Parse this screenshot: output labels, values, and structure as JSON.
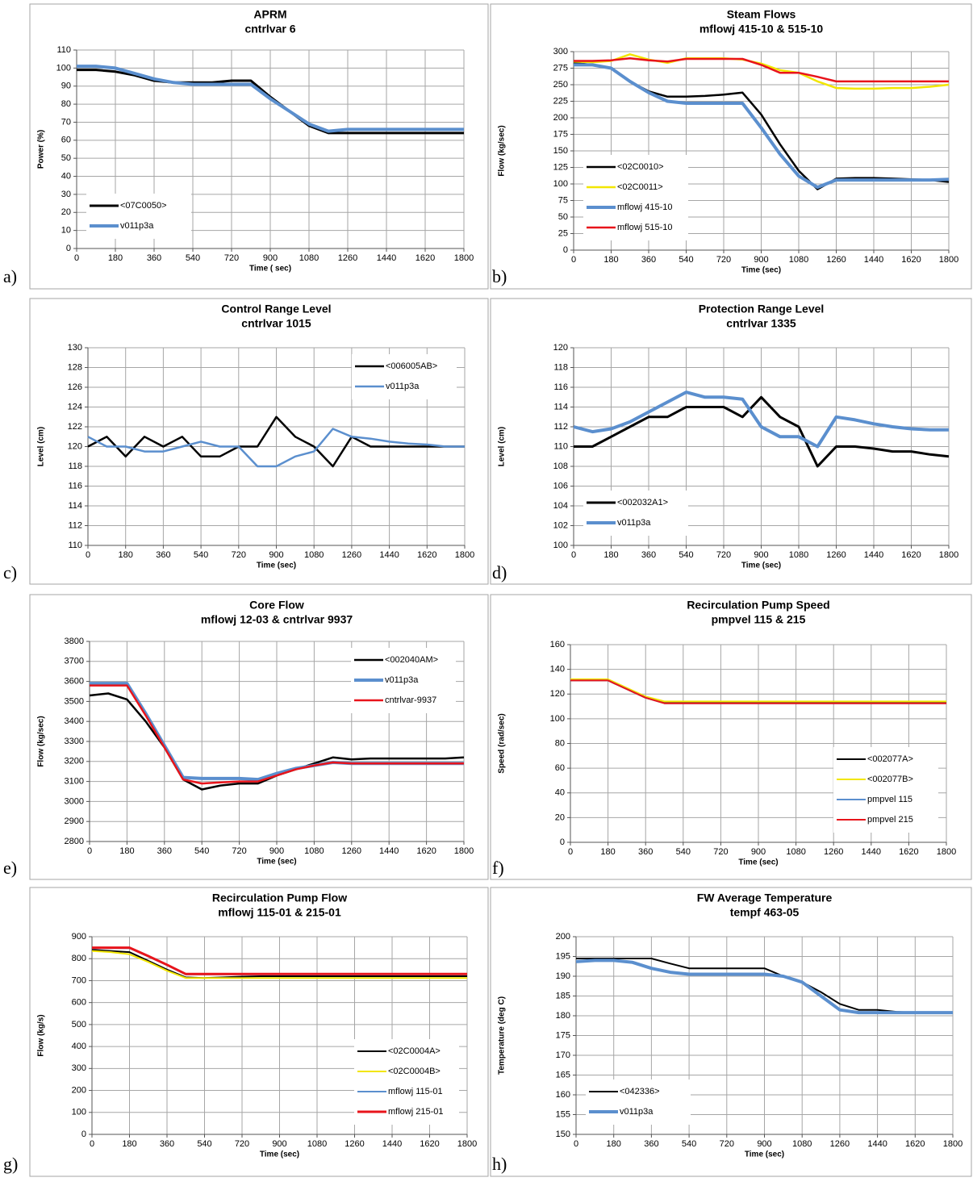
{
  "chart_data": [
    {
      "type": "line",
      "panel": "a)",
      "title": "APRM",
      "subtitle": "cntrlvar 6",
      "xlabel": "Time ( sec)",
      "ylabel": "Power (%)",
      "x": [
        0,
        90,
        180,
        270,
        360,
        450,
        540,
        630,
        720,
        810,
        900,
        990,
        1080,
        1170,
        1260,
        1350,
        1440,
        1530,
        1620,
        1710,
        1800
      ],
      "xlim": [
        0,
        1800
      ],
      "xticks": [
        0,
        180,
        360,
        540,
        720,
        900,
        1080,
        1260,
        1440,
        1620,
        1800
      ],
      "ylim": [
        0,
        110
      ],
      "yticks": [
        0,
        10,
        20,
        30,
        40,
        50,
        60,
        70,
        80,
        90,
        100,
        110
      ],
      "grid": true,
      "legend": "lower left",
      "series": [
        {
          "name": "<07C0050>",
          "color": "#000000",
          "width": 3,
          "values": [
            99,
            99,
            98,
            96,
            93,
            92,
            92,
            92,
            93,
            93,
            84,
            76,
            68,
            64,
            64,
            64,
            64,
            64,
            64,
            64,
            64
          ]
        },
        {
          "name": "v011p3a",
          "color": "#5b8fce",
          "width": 4,
          "values": [
            101,
            101,
            100,
            97,
            94,
            92,
            91,
            91,
            91,
            91,
            83,
            76,
            69,
            65,
            66,
            66,
            66,
            66,
            66,
            66,
            66
          ]
        }
      ]
    },
    {
      "type": "line",
      "panel": "b)",
      "title": "Steam Flows",
      "subtitle": "mflowj 415-10 & 515-10",
      "xlabel": "Time (sec)",
      "ylabel": "Flow (kg/sec)",
      "x": [
        0,
        90,
        180,
        270,
        360,
        450,
        540,
        630,
        720,
        810,
        900,
        990,
        1080,
        1170,
        1260,
        1350,
        1440,
        1530,
        1620,
        1710,
        1800
      ],
      "xlim": [
        0,
        1800
      ],
      "xticks": [
        0,
        180,
        360,
        540,
        720,
        900,
        1080,
        1260,
        1440,
        1620,
        1800
      ],
      "ylim": [
        0,
        300
      ],
      "yticks": [
        0,
        25,
        50,
        75,
        100,
        125,
        150,
        175,
        200,
        225,
        250,
        275,
        300
      ],
      "grid": true,
      "legend": "lower left",
      "series": [
        {
          "name": "<02C0010>",
          "color": "#000000",
          "width": 2.5,
          "values": [
            283,
            280,
            275,
            255,
            240,
            232,
            232,
            233,
            235,
            238,
            205,
            160,
            120,
            92,
            108,
            109,
            109,
            108,
            107,
            106,
            103
          ]
        },
        {
          "name": "<02C0011>",
          "color": "#f2e600",
          "width": 2.5,
          "values": [
            285,
            284,
            286,
            296,
            288,
            283,
            290,
            290,
            290,
            288,
            282,
            272,
            268,
            255,
            245,
            244,
            244,
            245,
            245,
            247,
            250
          ]
        },
        {
          "name": "mflowj 415-10",
          "color": "#5b8fce",
          "width": 4,
          "values": [
            280,
            280,
            275,
            255,
            238,
            225,
            222,
            222,
            222,
            222,
            185,
            145,
            112,
            95,
            106,
            106,
            106,
            106,
            106,
            106,
            107
          ]
        },
        {
          "name": "mflowj 515-10",
          "color": "#e8141b",
          "width": 2.5,
          "values": [
            286,
            286,
            287,
            290,
            287,
            285,
            289,
            289,
            289,
            289,
            280,
            268,
            268,
            262,
            255,
            255,
            255,
            255,
            255,
            255,
            255
          ]
        }
      ]
    },
    {
      "type": "line",
      "panel": "c)",
      "title": "Control Range Level",
      "subtitle": "cntrlvar 1015",
      "xlabel": "Time (sec)",
      "ylabel": "Level (cm)",
      "x": [
        0,
        90,
        180,
        270,
        360,
        450,
        540,
        630,
        720,
        810,
        900,
        990,
        1080,
        1170,
        1260,
        1350,
        1440,
        1530,
        1620,
        1710,
        1800
      ],
      "xlim": [
        0,
        1800
      ],
      "xticks": [
        0,
        180,
        360,
        540,
        720,
        900,
        1080,
        1260,
        1440,
        1620,
        1800
      ],
      "ylim": [
        110,
        130
      ],
      "yticks": [
        110,
        112,
        114,
        116,
        118,
        120,
        122,
        124,
        126,
        128,
        130
      ],
      "grid": true,
      "legend": "upper right",
      "series": [
        {
          "name": "<006005AB>",
          "color": "#000000",
          "width": 2.5,
          "values": [
            120,
            121,
            119,
            121,
            120,
            121,
            119,
            119,
            120,
            120,
            123,
            121,
            120,
            118,
            121,
            120,
            120,
            120,
            120,
            120,
            120
          ]
        },
        {
          "name": "v011p3a",
          "color": "#5b8fce",
          "width": 2.5,
          "values": [
            121,
            120,
            120,
            119.5,
            119.5,
            120,
            120.5,
            120,
            120,
            118,
            118,
            119,
            119.5,
            121.8,
            121,
            120.8,
            120.5,
            120.3,
            120.2,
            120,
            120
          ]
        }
      ]
    },
    {
      "type": "line",
      "panel": "d)",
      "title": "Protection Range Level",
      "subtitle": "cntrlvar  1335",
      "xlabel": "Time (sec)",
      "ylabel": "Level (cm)",
      "x": [
        0,
        90,
        180,
        270,
        360,
        450,
        540,
        630,
        720,
        810,
        900,
        990,
        1080,
        1170,
        1260,
        1350,
        1440,
        1530,
        1620,
        1710,
        1800
      ],
      "xlim": [
        0,
        1800
      ],
      "xticks": [
        0,
        180,
        360,
        540,
        720,
        900,
        1080,
        1260,
        1440,
        1620,
        1800
      ],
      "ylim": [
        100,
        120
      ],
      "yticks": [
        100,
        102,
        104,
        106,
        108,
        110,
        112,
        114,
        116,
        118,
        120
      ],
      "grid": true,
      "legend": "lower left",
      "series": [
        {
          "name": "<002032A1>",
          "color": "#000000",
          "width": 3,
          "values": [
            110,
            110,
            111,
            112,
            113,
            113,
            114,
            114,
            114,
            113,
            115,
            113,
            112,
            108,
            110,
            110,
            109.8,
            109.5,
            109.5,
            109.2,
            109
          ]
        },
        {
          "name": "v011p3a",
          "color": "#5b8fce",
          "width": 4,
          "values": [
            112,
            111.5,
            111.8,
            112.5,
            113.5,
            114.5,
            115.5,
            115,
            115,
            114.8,
            112,
            111,
            111,
            110,
            113,
            112.7,
            112.3,
            112,
            111.8,
            111.7,
            111.7
          ]
        }
      ]
    },
    {
      "type": "line",
      "panel": "e)",
      "title": "Core Flow",
      "subtitle": "mflowj 12-03 & cntrlvar 9937",
      "xlabel": "Time (sec)",
      "ylabel": "Flow (kg/sec)",
      "x": [
        0,
        90,
        180,
        270,
        360,
        450,
        540,
        630,
        720,
        810,
        900,
        990,
        1080,
        1170,
        1260,
        1350,
        1440,
        1530,
        1620,
        1710,
        1800
      ],
      "xlim": [
        0,
        1800
      ],
      "xticks": [
        0,
        180,
        360,
        540,
        720,
        900,
        1080,
        1260,
        1440,
        1620,
        1800
      ],
      "ylim": [
        2800,
        3800
      ],
      "yticks": [
        2800,
        2900,
        3000,
        3100,
        3200,
        3300,
        3400,
        3500,
        3600,
        3700,
        3800
      ],
      "grid": true,
      "legend": "upper right",
      "series": [
        {
          "name": "<002040AM>",
          "color": "#000000",
          "width": 2.5,
          "values": [
            3530,
            3540,
            3510,
            3400,
            3270,
            3110,
            3060,
            3080,
            3090,
            3090,
            3130,
            3160,
            3190,
            3220,
            3210,
            3215,
            3215,
            3215,
            3215,
            3215,
            3220
          ]
        },
        {
          "name": "v011p3a",
          "color": "#5b8fce",
          "width": 4,
          "values": [
            3590,
            3590,
            3590,
            3440,
            3280,
            3120,
            3115,
            3115,
            3115,
            3110,
            3140,
            3165,
            3180,
            3195,
            3190,
            3190,
            3190,
            3190,
            3190,
            3190,
            3190
          ]
        },
        {
          "name": "cntrlvar-9937",
          "color": "#e8141b",
          "width": 2.5,
          "values": [
            3580,
            3580,
            3580,
            3430,
            3270,
            3110,
            3090,
            3095,
            3100,
            3100,
            3130,
            3160,
            3180,
            3195,
            3190,
            3190,
            3190,
            3190,
            3190,
            3190,
            3190
          ]
        }
      ]
    },
    {
      "type": "line",
      "panel": "f)",
      "title": "Recirculation Pump Speed",
      "subtitle": "pmpvel 115 & 215",
      "xlabel": "Time (sec)",
      "ylabel": "Speed (rad/sec)",
      "x": [
        0,
        90,
        180,
        270,
        360,
        450,
        540,
        630,
        720,
        810,
        900,
        990,
        1080,
        1170,
        1260,
        1350,
        1440,
        1530,
        1620,
        1710,
        1800
      ],
      "xlim": [
        0,
        1800
      ],
      "xticks": [
        0,
        180,
        360,
        540,
        720,
        900,
        1080,
        1260,
        1440,
        1620,
        1800
      ],
      "ylim": [
        0,
        160
      ],
      "yticks": [
        0,
        20,
        40,
        60,
        80,
        100,
        120,
        140,
        160
      ],
      "grid": true,
      "legend": "lower right",
      "series": [
        {
          "name": "<002077A>",
          "color": "#000000",
          "width": 2,
          "values": [
            131,
            131,
            131,
            124,
            117,
            113,
            113,
            113,
            113,
            113,
            113,
            113,
            113,
            113,
            113,
            113,
            113,
            113,
            113,
            113,
            113
          ]
        },
        {
          "name": "<002077B>",
          "color": "#f2e600",
          "width": 2,
          "values": [
            132,
            132,
            132,
            125,
            118,
            114,
            114,
            114,
            114,
            114,
            114,
            114,
            114,
            114,
            114,
            114,
            114,
            114,
            114,
            114,
            114
          ]
        },
        {
          "name": "pmpvel 115",
          "color": "#5b8fce",
          "width": 2,
          "values": [
            131,
            131,
            131,
            124,
            117,
            112.5,
            112.5,
            112.5,
            112.5,
            112.5,
            112.5,
            112.5,
            112.5,
            112.5,
            112.5,
            112.5,
            112.5,
            112.5,
            112.5,
            112.5,
            112.5
          ]
        },
        {
          "name": "pmpvel 215",
          "color": "#e8141b",
          "width": 2,
          "values": [
            131,
            131,
            131,
            124,
            117,
            112.5,
            112.5,
            112.5,
            112.5,
            112.5,
            112.5,
            112.5,
            112.5,
            112.5,
            112.5,
            112.5,
            112.5,
            112.5,
            112.5,
            112.5,
            112.5
          ]
        }
      ]
    },
    {
      "type": "line",
      "panel": "g)",
      "title": "Recirculation Pump Flow",
      "subtitle": "mflowj 115-01 & 215-01",
      "xlabel": "Time (sec)",
      "ylabel": "Flow (kg/s)",
      "x": [
        0,
        90,
        180,
        270,
        360,
        450,
        540,
        630,
        720,
        810,
        900,
        990,
        1080,
        1170,
        1260,
        1350,
        1440,
        1530,
        1620,
        1710,
        1800
      ],
      "xlim": [
        0,
        1800
      ],
      "xticks": [
        0,
        180,
        360,
        540,
        720,
        900,
        1080,
        1260,
        1440,
        1620,
        1800
      ],
      "ylim": [
        0,
        900
      ],
      "yticks": [
        0,
        100,
        200,
        300,
        400,
        500,
        600,
        700,
        800,
        900
      ],
      "grid": true,
      "legend": "lower right",
      "series": [
        {
          "name": "<02C0004A>",
          "color": "#000000",
          "width": 2,
          "values": [
            840,
            835,
            830,
            790,
            750,
            715,
            712,
            715,
            718,
            720,
            720,
            720,
            720,
            720,
            720,
            720,
            720,
            720,
            720,
            720,
            720
          ]
        },
        {
          "name": "<02C0004B>",
          "color": "#f2e600",
          "width": 2,
          "values": [
            835,
            830,
            820,
            785,
            745,
            712,
            712,
            712,
            712,
            712,
            712,
            712,
            712,
            712,
            712,
            712,
            712,
            712,
            712,
            712,
            712
          ]
        },
        {
          "name": "mflowj 115-01",
          "color": "#5b8fce",
          "width": 2,
          "values": [
            848,
            848,
            848,
            810,
            770,
            728,
            728,
            728,
            728,
            728,
            728,
            728,
            728,
            728,
            728,
            728,
            728,
            728,
            728,
            728,
            728
          ]
        },
        {
          "name": "mflowj 215-01",
          "color": "#e8141b",
          "width": 3,
          "values": [
            850,
            850,
            850,
            812,
            772,
            730,
            730,
            730,
            730,
            730,
            730,
            730,
            730,
            730,
            730,
            730,
            730,
            730,
            730,
            730,
            730
          ]
        }
      ]
    },
    {
      "type": "line",
      "panel": "h)",
      "title": "FW Average Temperature",
      "subtitle": "tempf 463-05",
      "xlabel": "Time (sec)",
      "ylabel": "Temperature (deg C)",
      "x": [
        0,
        90,
        180,
        270,
        360,
        450,
        540,
        630,
        720,
        810,
        900,
        990,
        1080,
        1170,
        1260,
        1350,
        1440,
        1530,
        1620,
        1710,
        1800
      ],
      "xlim": [
        0,
        1800
      ],
      "xticks": [
        0,
        180,
        360,
        540,
        720,
        900,
        1080,
        1260,
        1440,
        1620,
        1800
      ],
      "ylim": [
        150,
        200
      ],
      "yticks": [
        150,
        155,
        160,
        165,
        170,
        175,
        180,
        185,
        190,
        195,
        200
      ],
      "grid": true,
      "legend": "lower left",
      "series": [
        {
          "name": "<042336>",
          "color": "#000000",
          "width": 2,
          "values": [
            194.5,
            194.5,
            194.5,
            194.5,
            194.5,
            193.2,
            192,
            192,
            192,
            192,
            192,
            190,
            188.5,
            186,
            183,
            181.5,
            181.5,
            181,
            180.8,
            180.8,
            180.8
          ]
        },
        {
          "name": "v011p3a",
          "color": "#5b8fce",
          "width": 4,
          "values": [
            193.7,
            194,
            194,
            193.5,
            192,
            191,
            190.5,
            190.5,
            190.5,
            190.5,
            190.5,
            190,
            188.5,
            185,
            181.5,
            180.8,
            180.8,
            180.8,
            180.8,
            180.8,
            180.8
          ]
        }
      ]
    }
  ]
}
